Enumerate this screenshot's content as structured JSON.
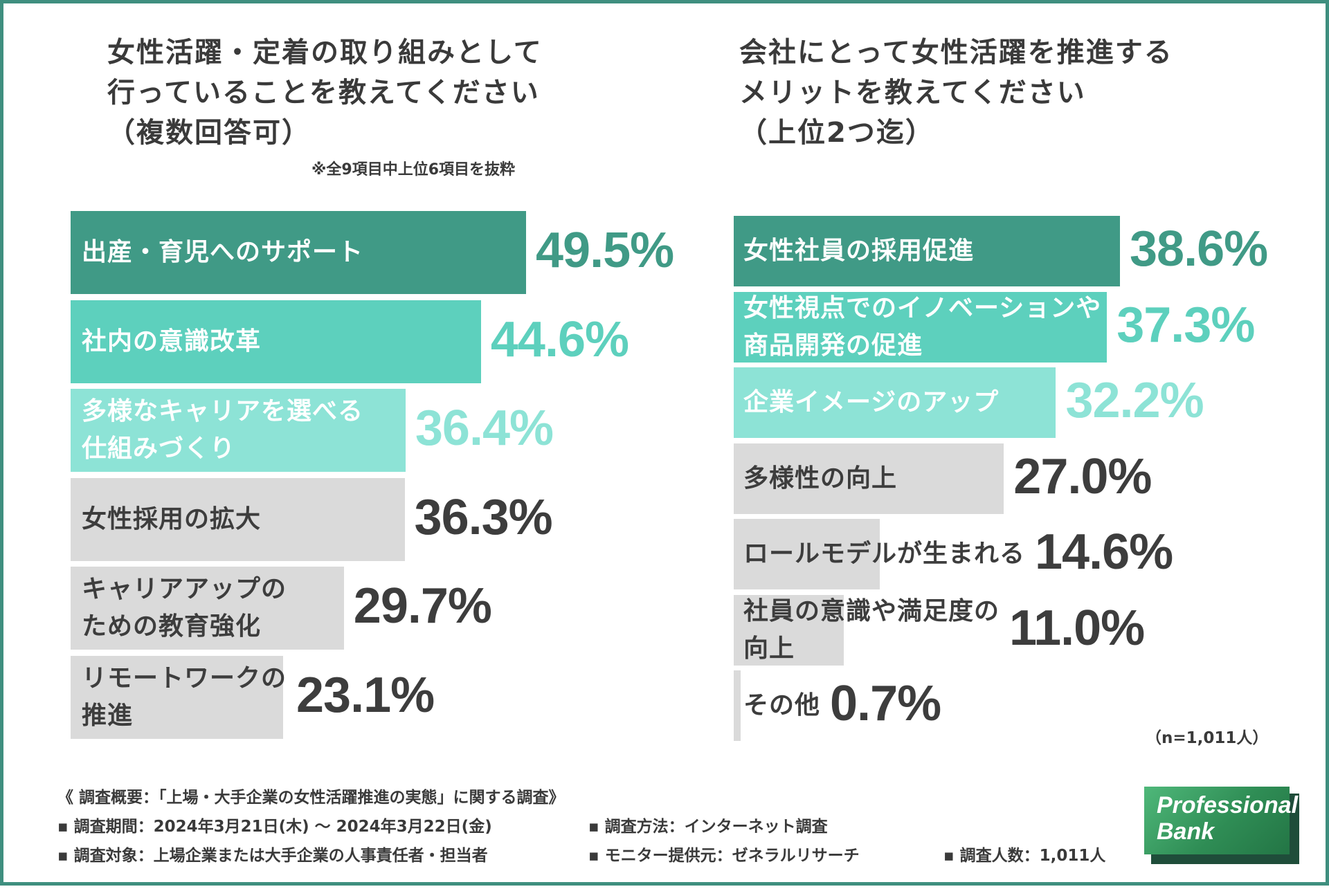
{
  "left_title": {
    "line1": "女性活躍・定着の取り組みとして",
    "line2": "行っていることを教えてください",
    "line3": "（複数回答可）",
    "note": "※全9項目中上位6項目を抜粋"
  },
  "right_title": {
    "line1": "会社にとって女性活躍を推進する",
    "line2": "メリットを教えてください",
    "line3": "（上位2つ迄）"
  },
  "sample_size": "（n=1,011人）",
  "colors": {
    "dark_teal": "#409a86",
    "mid_teal": "#5dd0bd",
    "light_teal": "#8de3d6",
    "gray": "#dadada",
    "gray_text": "#3d3d3d",
    "frame": "#3f8f7f"
  },
  "chart_data": [
    {
      "type": "bar",
      "orientation": "horizontal",
      "title": "女性活躍・定着の取り組みとして行っていることを教えてください（複数回答可）",
      "unit": "%",
      "categories": [
        "出産・育児へのサポート",
        "社内の意識改革",
        "多様なキャリアを選べる仕組みづくり",
        "女性採用の拡大",
        "キャリアアップのための教育強化",
        "リモートワークの推進"
      ],
      "label_lines": [
        [
          "出産・育児へのサポート"
        ],
        [
          "社内の意識改革"
        ],
        [
          "多様なキャリアを選べる",
          "仕組みづくり"
        ],
        [
          "女性採用の拡大"
        ],
        [
          "キャリアアップの",
          "ための教育強化"
        ],
        [
          "リモートワークの",
          "推進"
        ]
      ],
      "values": [
        49.5,
        44.6,
        36.4,
        36.3,
        29.7,
        23.1
      ],
      "value_labels": [
        "49.5%",
        "44.6%",
        "36.4%",
        "36.3%",
        "29.7%",
        "23.1%"
      ],
      "bar_colors": [
        "#409a86",
        "#5dd0bd",
        "#8de3d6",
        "#dadada",
        "#dadada",
        "#dadada"
      ],
      "label_colors": [
        "#ffffff",
        "#ffffff",
        "#ffffff",
        "#3d3d3d",
        "#3d3d3d",
        "#3d3d3d"
      ],
      "value_colors": [
        "#409a86",
        "#5dd0bd",
        "#8de3d6",
        "#3d3d3d",
        "#3d3d3d",
        "#3d3d3d"
      ]
    },
    {
      "type": "bar",
      "orientation": "horizontal",
      "title": "会社にとって女性活躍を推進するメリットを教えてください（上位2つ迄）",
      "unit": "%",
      "categories": [
        "女性社員の採用促進",
        "女性視点でのイノベーションや商品開発の促進",
        "企業イメージのアップ",
        "多様性の向上",
        "ロールモデルが生まれる",
        "社員の意識や満足度の向上",
        "その他"
      ],
      "label_lines": [
        [
          "女性社員の採用促進"
        ],
        [
          "女性視点でのイノベーションや",
          "商品開発の促進"
        ],
        [
          "企業イメージのアップ"
        ],
        [
          "多様性の向上"
        ],
        [
          "ロールモデルが生まれる"
        ],
        [
          "社員の意識や満足度の",
          "向上"
        ],
        [
          "その他"
        ]
      ],
      "values": [
        38.6,
        37.3,
        32.2,
        27.0,
        14.6,
        11.0,
        0.7
      ],
      "value_labels": [
        "38.6%",
        "37.3%",
        "32.2%",
        "27.0%",
        "14.6%",
        "11.0%",
        "0.7%"
      ],
      "bar_colors": [
        "#409a86",
        "#5dd0bd",
        "#8de3d6",
        "#dadada",
        "#dadada",
        "#dadada",
        "#dadada"
      ],
      "label_colors": [
        "#ffffff",
        "#ffffff",
        "#ffffff",
        "#3d3d3d",
        "#3d3d3d",
        "#3d3d3d",
        "#3d3d3d"
      ],
      "value_colors": [
        "#409a86",
        "#5dd0bd",
        "#8de3d6",
        "#3d3d3d",
        "#3d3d3d",
        "#3d3d3d",
        "#3d3d3d"
      ]
    }
  ],
  "footer": {
    "heading": "《 調査概要：「上場・大手企業の女性活躍推進の実態」に関する調査》",
    "period": "▪ 調査期間：2024年3月21日(木) 〜 2024年3月22日(金)",
    "method": "▪ 調査方法：インターネット調査",
    "target": "▪ 調査対象：上場企業または大手企業の人事責任者・担当者",
    "provider": "▪ モニター提供元：ゼネラルリサーチ",
    "count": "▪ 調査人数：1,011人"
  },
  "logo": {
    "line1": "Professional",
    "line2": "Bank"
  }
}
